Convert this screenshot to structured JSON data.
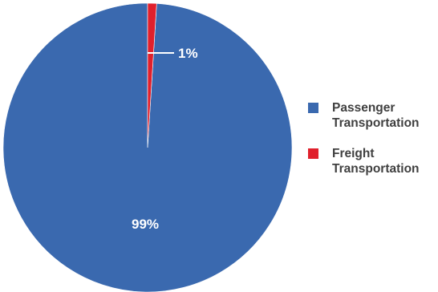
{
  "chart_data": {
    "type": "pie",
    "categories": [
      "Passenger\nTransportation",
      "Freight\nTransportation"
    ],
    "values": [
      99,
      1
    ],
    "labels": [
      "99%",
      "1%"
    ],
    "colors": [
      "#3a69af",
      "#e0202c"
    ],
    "legend_position": "right",
    "title": ""
  }
}
